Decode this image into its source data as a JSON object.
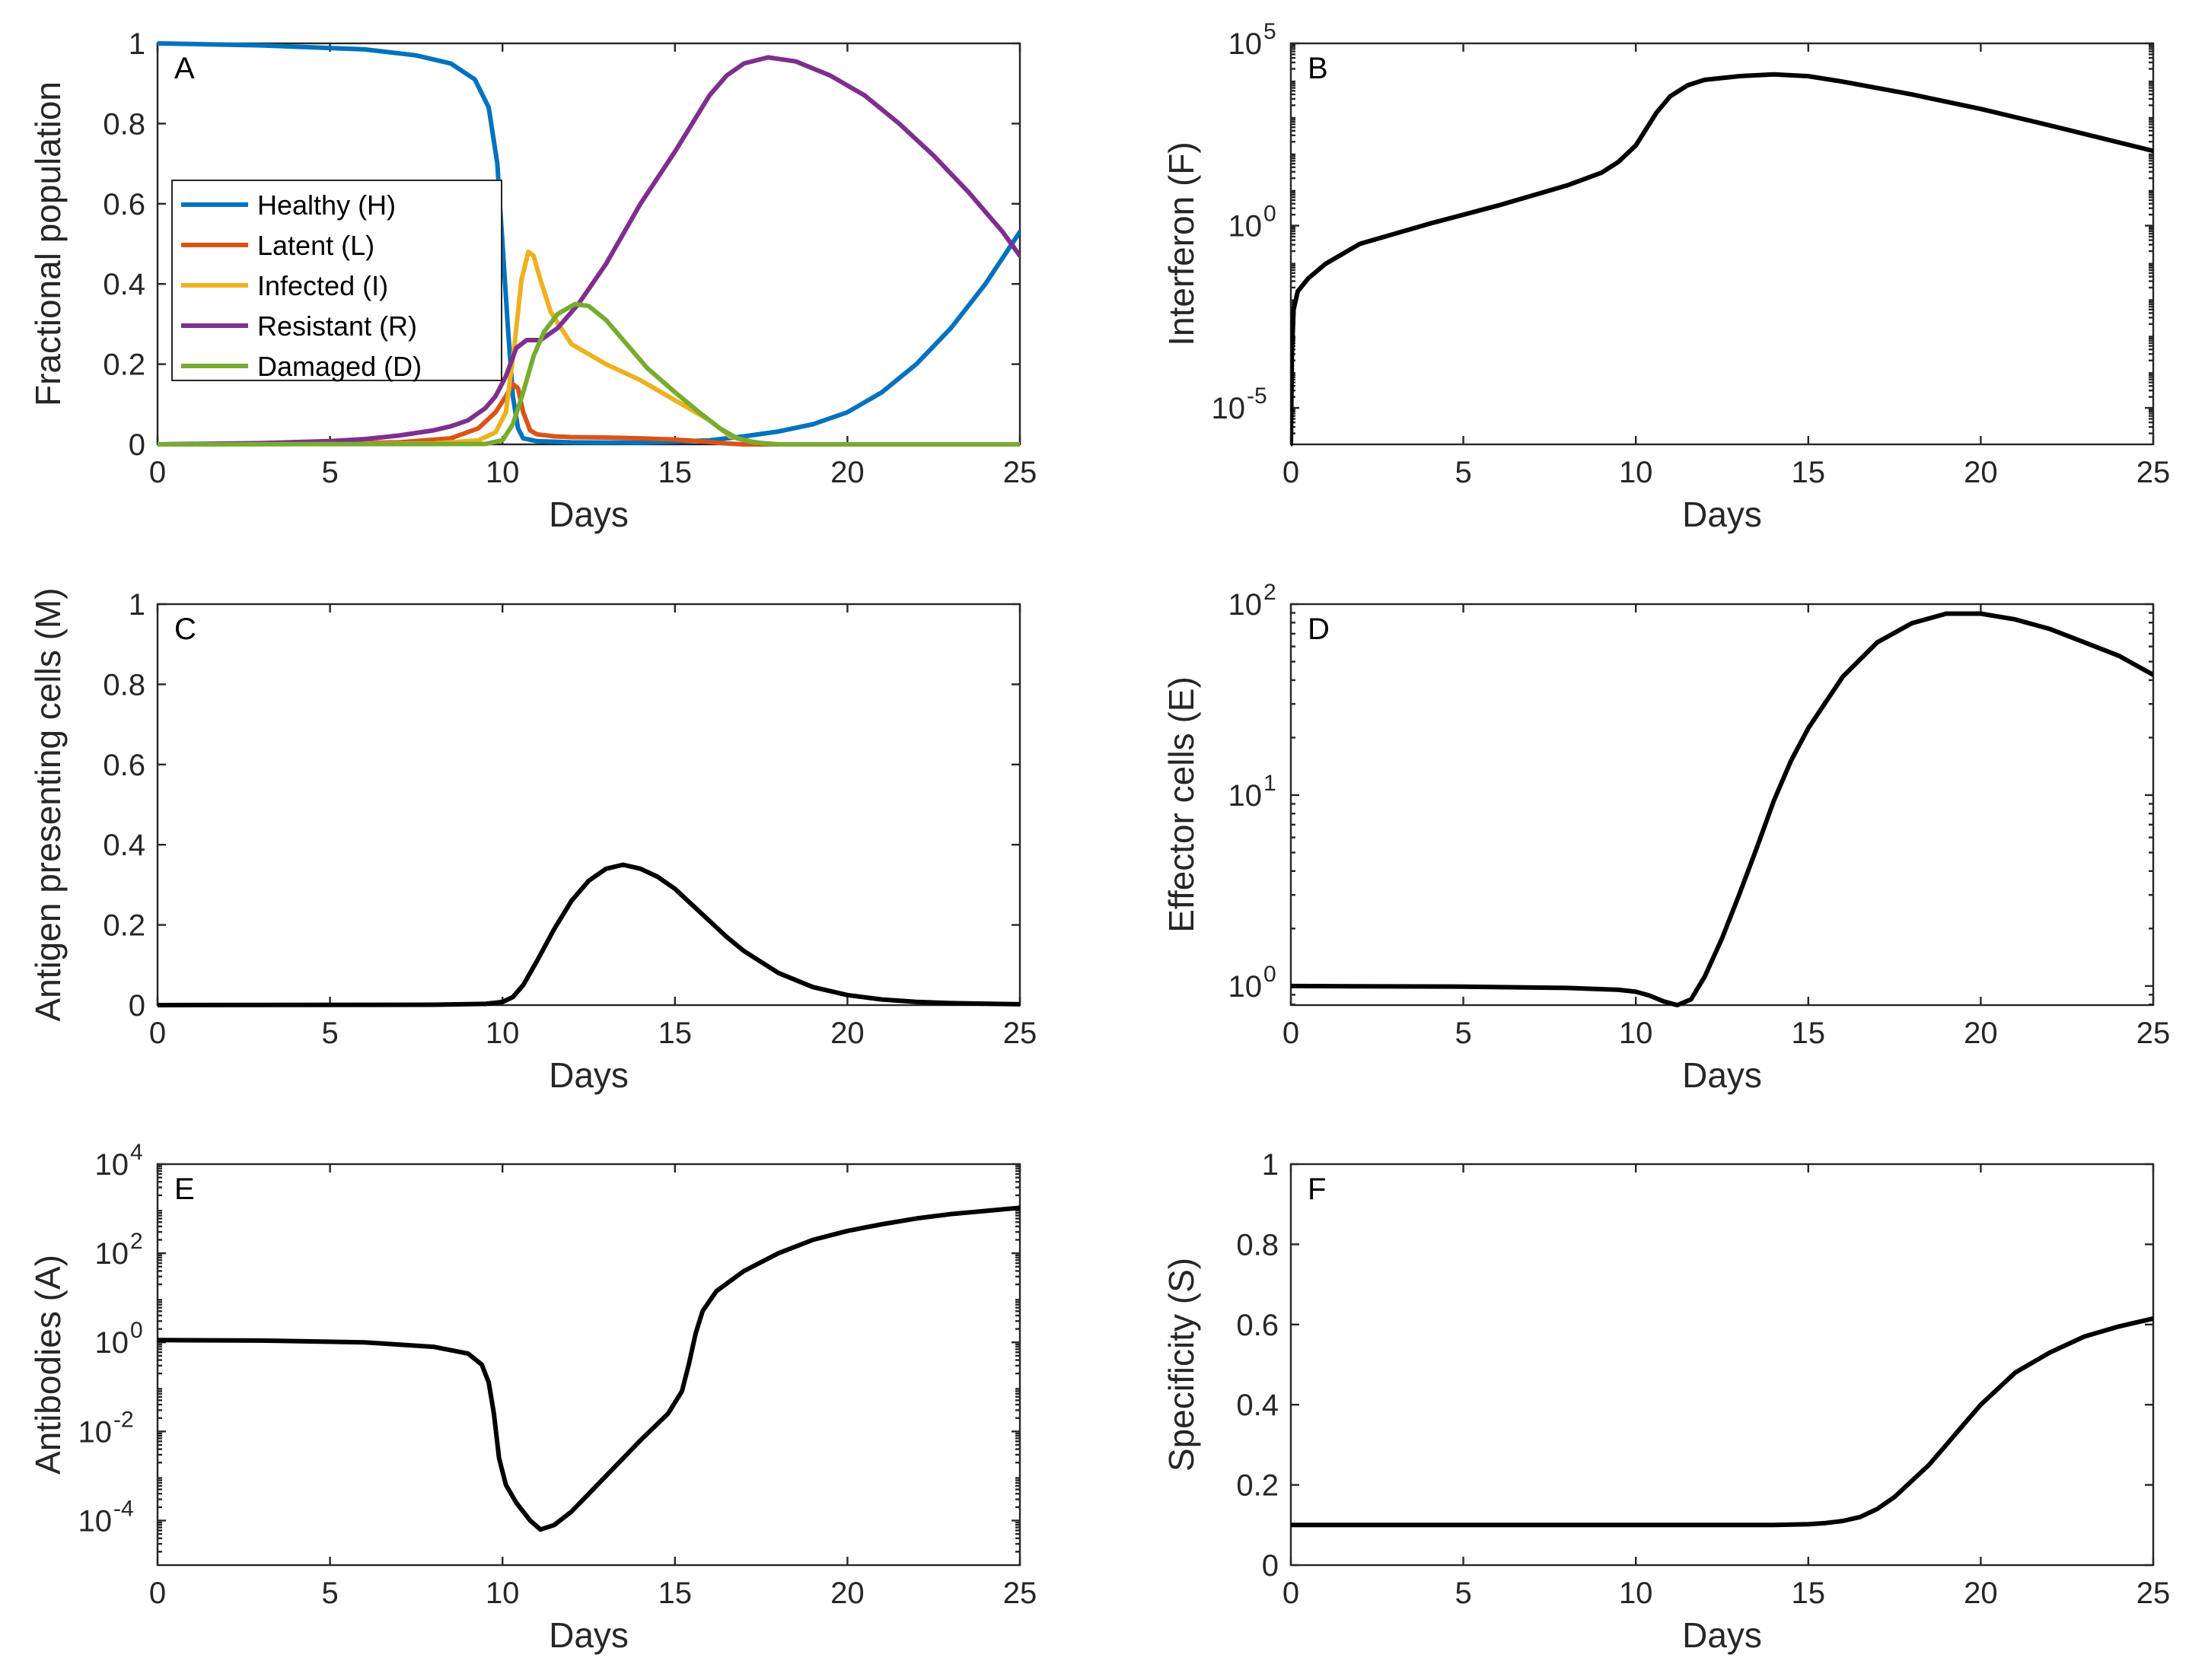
{
  "chart_data": [
    {
      "panel": "A",
      "type": "line",
      "xlabel": "Days",
      "ylabel": "Fractional population",
      "xlim": [
        0,
        25
      ],
      "ylim": [
        0,
        1
      ],
      "yscale": "linear",
      "xticks": [
        0,
        5,
        10,
        15,
        20,
        25
      ],
      "yticks": [
        0,
        0.2,
        0.4,
        0.6,
        0.8,
        1
      ],
      "ytick_labels": [
        "0",
        "0.2",
        "0.4",
        "0.6",
        "0.8",
        "1"
      ],
      "legend": "upper-left",
      "series": [
        {
          "name": "Healthy (H)",
          "color": "#0072BD",
          "x": [
            0,
            3,
            6,
            7.5,
            8.5,
            9.2,
            9.6,
            9.85,
            10,
            10.15,
            10.3,
            10.45,
            10.6,
            11,
            12,
            14,
            16,
            17,
            18,
            19,
            20,
            21,
            22,
            23,
            24,
            25
          ],
          "y": [
            1.0,
            0.995,
            0.985,
            0.97,
            0.95,
            0.91,
            0.84,
            0.7,
            0.5,
            0.3,
            0.12,
            0.04,
            0.015,
            0.008,
            0.005,
            0.004,
            0.01,
            0.02,
            0.032,
            0.05,
            0.08,
            0.13,
            0.2,
            0.29,
            0.4,
            0.53
          ]
        },
        {
          "name": "Latent (L)",
          "color": "#D95319",
          "x": [
            0,
            5,
            7,
            8.5,
            9.3,
            9.8,
            10.1,
            10.3,
            10.45,
            10.6,
            10.8,
            11,
            11.5,
            12,
            13,
            14,
            15,
            16,
            16.5,
            17,
            25
          ],
          "y": [
            0,
            0.002,
            0.005,
            0.015,
            0.04,
            0.08,
            0.12,
            0.15,
            0.14,
            0.08,
            0.035,
            0.025,
            0.02,
            0.018,
            0.017,
            0.015,
            0.012,
            0.006,
            0.002,
            0,
            0
          ]
        },
        {
          "name": "Infected (I)",
          "color": "#EDB120",
          "x": [
            0,
            8,
            9.3,
            9.8,
            10.1,
            10.35,
            10.55,
            10.75,
            10.9,
            11.1,
            11.4,
            12,
            13,
            14,
            15,
            16,
            16.6,
            17.3,
            18,
            25
          ],
          "y": [
            0,
            0.002,
            0.01,
            0.03,
            0.08,
            0.25,
            0.41,
            0.48,
            0.47,
            0.41,
            0.33,
            0.25,
            0.2,
            0.16,
            0.11,
            0.06,
            0.02,
            0.005,
            0,
            0
          ]
        },
        {
          "name": "Resistant (R)",
          "color": "#7E2F8E",
          "x": [
            0,
            3,
            5,
            6,
            7,
            8,
            8.5,
            9,
            9.5,
            9.8,
            10.1,
            10.4,
            10.7,
            11.1,
            11.6,
            12.2,
            13,
            14,
            15,
            16,
            16.5,
            17,
            17.7,
            18.5,
            19.5,
            20.5,
            21.5,
            22.5,
            23.5,
            24.5,
            25
          ],
          "y": [
            0,
            0.003,
            0.008,
            0.013,
            0.022,
            0.035,
            0.045,
            0.06,
            0.09,
            0.12,
            0.17,
            0.24,
            0.26,
            0.26,
            0.29,
            0.35,
            0.45,
            0.6,
            0.73,
            0.87,
            0.92,
            0.95,
            0.965,
            0.955,
            0.92,
            0.87,
            0.8,
            0.72,
            0.63,
            0.53,
            0.47
          ]
        },
        {
          "name": "Damaged (D)",
          "color": "#77AC30",
          "x": [
            0,
            9.5,
            10,
            10.3,
            10.6,
            10.9,
            11.2,
            11.6,
            12.1,
            12.5,
            13,
            13.6,
            14.2,
            15,
            15.7,
            16.3,
            16.8,
            17.2,
            17.6,
            18,
            25
          ],
          "y": [
            0,
            0.001,
            0.01,
            0.05,
            0.13,
            0.22,
            0.28,
            0.325,
            0.35,
            0.345,
            0.31,
            0.25,
            0.19,
            0.13,
            0.08,
            0.04,
            0.015,
            0.007,
            0.002,
            0,
            0
          ]
        }
      ]
    },
    {
      "panel": "B",
      "type": "line",
      "xlabel": "Days",
      "ylabel": "Interferon (F)",
      "xlim": [
        0,
        25
      ],
      "ylim": [
        -6,
        5
      ],
      "yscale": "log10",
      "xticks": [
        0,
        5,
        10,
        15,
        20,
        25
      ],
      "yticks": [
        -5,
        0,
        5
      ],
      "ytick_labels": [
        {
          "base": "10",
          "exp": "-5"
        },
        {
          "base": "10",
          "exp": "0"
        },
        {
          "base": "10",
          "exp": "5"
        }
      ],
      "series": [
        {
          "name": "F",
          "color": "#000000",
          "x": [
            0,
            0.03,
            0.08,
            0.2,
            0.5,
            1,
            2,
            4,
            6,
            8,
            9,
            9.5,
            10,
            10.3,
            10.6,
            11,
            11.5,
            12,
            13,
            14,
            15,
            16,
            18,
            20,
            22,
            25
          ],
          "log10_y": [
            -6,
            -3.5,
            -2.3,
            -1.8,
            -1.45,
            -1.05,
            -0.5,
            0.05,
            0.55,
            1.1,
            1.45,
            1.75,
            2.2,
            2.65,
            3.1,
            3.55,
            3.85,
            4.0,
            4.1,
            4.15,
            4.1,
            3.95,
            3.6,
            3.2,
            2.75,
            2.05
          ]
        }
      ]
    },
    {
      "panel": "C",
      "type": "line",
      "xlabel": "Days",
      "ylabel": "Antigen presenting cells (M)",
      "xlim": [
        0,
        25
      ],
      "ylim": [
        0,
        1
      ],
      "yscale": "linear",
      "xticks": [
        0,
        5,
        10,
        15,
        20,
        25
      ],
      "yticks": [
        0,
        0.2,
        0.4,
        0.6,
        0.8,
        1
      ],
      "ytick_labels": [
        "0",
        "0.2",
        "0.4",
        "0.6",
        "0.8",
        "1"
      ],
      "series": [
        {
          "name": "M",
          "color": "#000000",
          "x": [
            0,
            8,
            9.5,
            10,
            10.3,
            10.6,
            11,
            11.5,
            12,
            12.5,
            13,
            13.5,
            14,
            14.5,
            15,
            15.5,
            16,
            16.5,
            17,
            18,
            19,
            20,
            21,
            22,
            23,
            25
          ],
          "y": [
            0,
            0.001,
            0.003,
            0.008,
            0.02,
            0.05,
            0.11,
            0.19,
            0.26,
            0.31,
            0.34,
            0.35,
            0.34,
            0.32,
            0.29,
            0.25,
            0.21,
            0.17,
            0.135,
            0.08,
            0.045,
            0.025,
            0.014,
            0.008,
            0.005,
            0.002
          ]
        }
      ]
    },
    {
      "panel": "D",
      "type": "line",
      "xlabel": "Days",
      "ylabel": "Effector cells (E)",
      "xlim": [
        0,
        25
      ],
      "ylim": [
        -0.1,
        2
      ],
      "yscale": "log10",
      "xticks": [
        0,
        5,
        10,
        15,
        20,
        25
      ],
      "yticks": [
        0,
        1,
        2
      ],
      "ytick_labels": [
        {
          "base": "10",
          "exp": "0"
        },
        {
          "base": "10",
          "exp": "1"
        },
        {
          "base": "10",
          "exp": "2"
        }
      ],
      "series": [
        {
          "name": "E",
          "color": "#000000",
          "x": [
            0,
            5,
            8,
            9.5,
            10,
            10.4,
            10.8,
            11.2,
            11.6,
            12,
            12.5,
            13,
            13.5,
            14,
            14.5,
            15,
            16,
            17,
            18,
            19,
            20,
            21,
            22,
            23,
            24,
            25
          ],
          "log10_y": [
            0.0,
            -0.003,
            -0.01,
            -0.02,
            -0.03,
            -0.05,
            -0.08,
            -0.1,
            -0.07,
            0.05,
            0.25,
            0.48,
            0.72,
            0.97,
            1.18,
            1.35,
            1.62,
            1.8,
            1.9,
            1.95,
            1.95,
            1.92,
            1.87,
            1.8,
            1.73,
            1.63
          ]
        }
      ]
    },
    {
      "panel": "E",
      "type": "line",
      "xlabel": "Days",
      "ylabel": "Antibodies (A)",
      "xlim": [
        0,
        25
      ],
      "ylim": [
        -5,
        4
      ],
      "yscale": "log10",
      "xticks": [
        0,
        5,
        10,
        15,
        20,
        25
      ],
      "yticks": [
        -4,
        -2,
        0,
        2,
        4
      ],
      "ytick_labels": [
        {
          "base": "10",
          "exp": "-4"
        },
        {
          "base": "10",
          "exp": "-2"
        },
        {
          "base": "10",
          "exp": "0"
        },
        {
          "base": "10",
          "exp": "2"
        },
        {
          "base": "10",
          "exp": "4"
        }
      ],
      "series": [
        {
          "name": "A",
          "color": "#000000",
          "x": [
            0,
            3,
            6,
            8,
            9,
            9.4,
            9.6,
            9.75,
            9.9,
            10.1,
            10.4,
            10.8,
            11.1,
            11.5,
            12,
            13,
            14,
            14.8,
            15.2,
            15.4,
            15.6,
            15.8,
            16.2,
            17,
            18,
            19,
            20,
            21,
            22,
            23,
            24,
            25
          ],
          "log10_y": [
            0.05,
            0.04,
            0.0,
            -0.1,
            -0.25,
            -0.5,
            -0.9,
            -1.6,
            -2.6,
            -3.2,
            -3.6,
            -4.0,
            -4.2,
            -4.1,
            -3.8,
            -3.0,
            -2.2,
            -1.6,
            -1.1,
            -0.5,
            0.2,
            0.7,
            1.15,
            1.6,
            2.0,
            2.3,
            2.5,
            2.65,
            2.78,
            2.88,
            2.95,
            3.02
          ]
        }
      ]
    },
    {
      "panel": "F",
      "type": "line",
      "xlabel": "Days",
      "ylabel": "Specificity (S)",
      "xlim": [
        0,
        25
      ],
      "ylim": [
        0,
        1
      ],
      "yscale": "linear",
      "xticks": [
        0,
        5,
        10,
        15,
        20,
        25
      ],
      "yticks": [
        0,
        0.2,
        0.4,
        0.6,
        0.8,
        1
      ],
      "ytick_labels": [
        "0",
        "0.2",
        "0.4",
        "0.6",
        "0.8",
        "1"
      ],
      "series": [
        {
          "name": "S",
          "color": "#000000",
          "x": [
            0,
            10,
            14,
            15,
            15.5,
            16,
            16.5,
            17,
            17.5,
            18,
            18.5,
            19,
            19.5,
            20,
            20.5,
            21,
            22,
            23,
            24,
            25
          ],
          "y": [
            0.1,
            0.1,
            0.1,
            0.102,
            0.105,
            0.11,
            0.12,
            0.14,
            0.17,
            0.21,
            0.25,
            0.3,
            0.35,
            0.4,
            0.44,
            0.48,
            0.53,
            0.57,
            0.595,
            0.615
          ]
        }
      ]
    }
  ]
}
